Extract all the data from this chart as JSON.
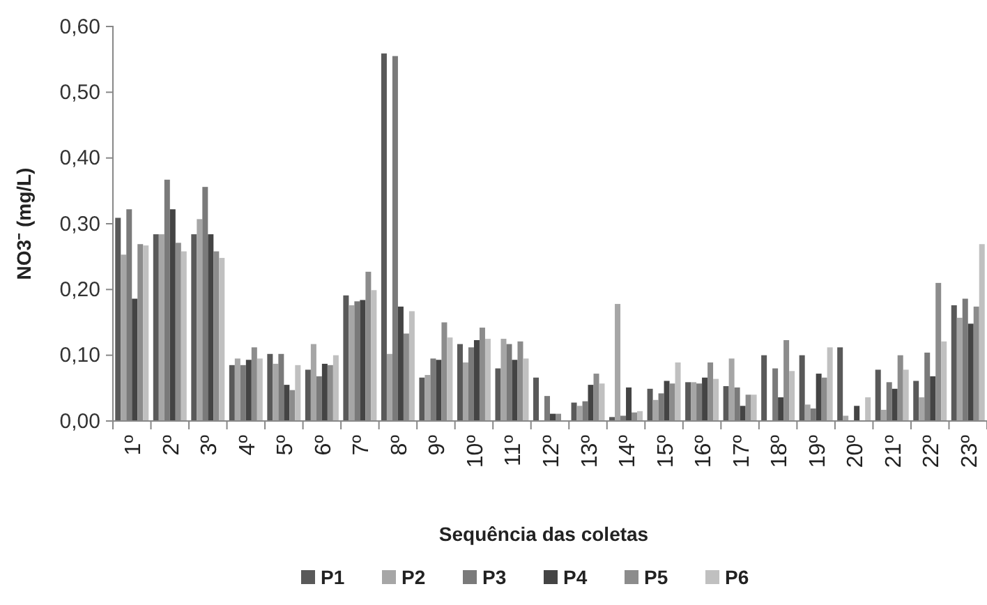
{
  "chart_data": {
    "type": "bar",
    "xlabel": "Sequência das coletas",
    "ylabel": "NO3⁻ (mg/L)",
    "categories": [
      "1º",
      "2º",
      "3º",
      "4º",
      "5º",
      "6º",
      "7º",
      "8º",
      "9º",
      "10º",
      "11º",
      "12º",
      "13º",
      "14º",
      "15º",
      "16º",
      "17º",
      "18º",
      "19º",
      "20º",
      "21º",
      "22º",
      "23º"
    ],
    "series": [
      {
        "name": "P1",
        "color": "#595959",
        "values": [
          0.309,
          0.284,
          0.284,
          0.085,
          0.102,
          0.078,
          0.191,
          0.559,
          0.066,
          0.117,
          0.08,
          0.066,
          0.028,
          0.006,
          0.049,
          0.059,
          0.053,
          0.1,
          0.1,
          0.112,
          0.078,
          0.061,
          0.176
        ]
      },
      {
        "name": "P2",
        "color": "#a6a6a6",
        "values": [
          0.253,
          0.284,
          0.307,
          0.095,
          0.087,
          0.117,
          0.176,
          0.102,
          0.07,
          0.089,
          0.125,
          0,
          0.023,
          0.178,
          0.032,
          0.059,
          0.095,
          0,
          0.025,
          0.008,
          0.017,
          0.036,
          0.157
        ]
      },
      {
        "name": "P3",
        "color": "#7a7a7a",
        "values": [
          0.322,
          0.367,
          0.356,
          0.085,
          0.102,
          0.068,
          0.182,
          0.555,
          0.095,
          0.112,
          0.117,
          0.038,
          0.03,
          0.008,
          0.042,
          0.057,
          0.051,
          0.08,
          0.019,
          null,
          0.059,
          0.104,
          0.186
        ]
      },
      {
        "name": "P4",
        "color": "#444444",
        "values": [
          0.186,
          0.322,
          0.284,
          0.093,
          0.055,
          0.087,
          0.184,
          0.174,
          0.093,
          0.123,
          0.093,
          0.011,
          0.055,
          0.051,
          0.061,
          0.066,
          0.023,
          0.036,
          0.072,
          0.023,
          0.049,
          0.068,
          0.148
        ]
      },
      {
        "name": "P5",
        "color": "#8c8c8c",
        "values": [
          0.269,
          0.271,
          0.258,
          0.112,
          0.047,
          0.085,
          0.227,
          0.133,
          0.15,
          0.142,
          0.121,
          0.011,
          0.072,
          0.013,
          0.057,
          0.089,
          0.04,
          0.123,
          0.066,
          0,
          0.1,
          0.21,
          0.174
        ]
      },
      {
        "name": "P6",
        "color": "#c0c0c0",
        "values": [
          0.267,
          0.258,
          0.248,
          0.095,
          0.085,
          0.1,
          0.199,
          0.167,
          0.127,
          0.125,
          0.095,
          0,
          0.057,
          0.015,
          0.089,
          0.064,
          0.04,
          0.076,
          0.112,
          0.036,
          0.078,
          0.121,
          0.269
        ]
      }
    ],
    "ylim": [
      0,
      0.6
    ],
    "yticks": [
      {
        "value": 0,
        "label": "0,00"
      },
      {
        "value": 0.1,
        "label": "0,10"
      },
      {
        "value": 0.2,
        "label": "0,20"
      },
      {
        "value": 0.3,
        "label": "0,30"
      },
      {
        "value": 0.4,
        "label": "0,40"
      },
      {
        "value": 0.5,
        "label": "0,50"
      },
      {
        "value": 0.6,
        "label": "0,60"
      }
    ],
    "grid": false,
    "legend": "bottom"
  }
}
